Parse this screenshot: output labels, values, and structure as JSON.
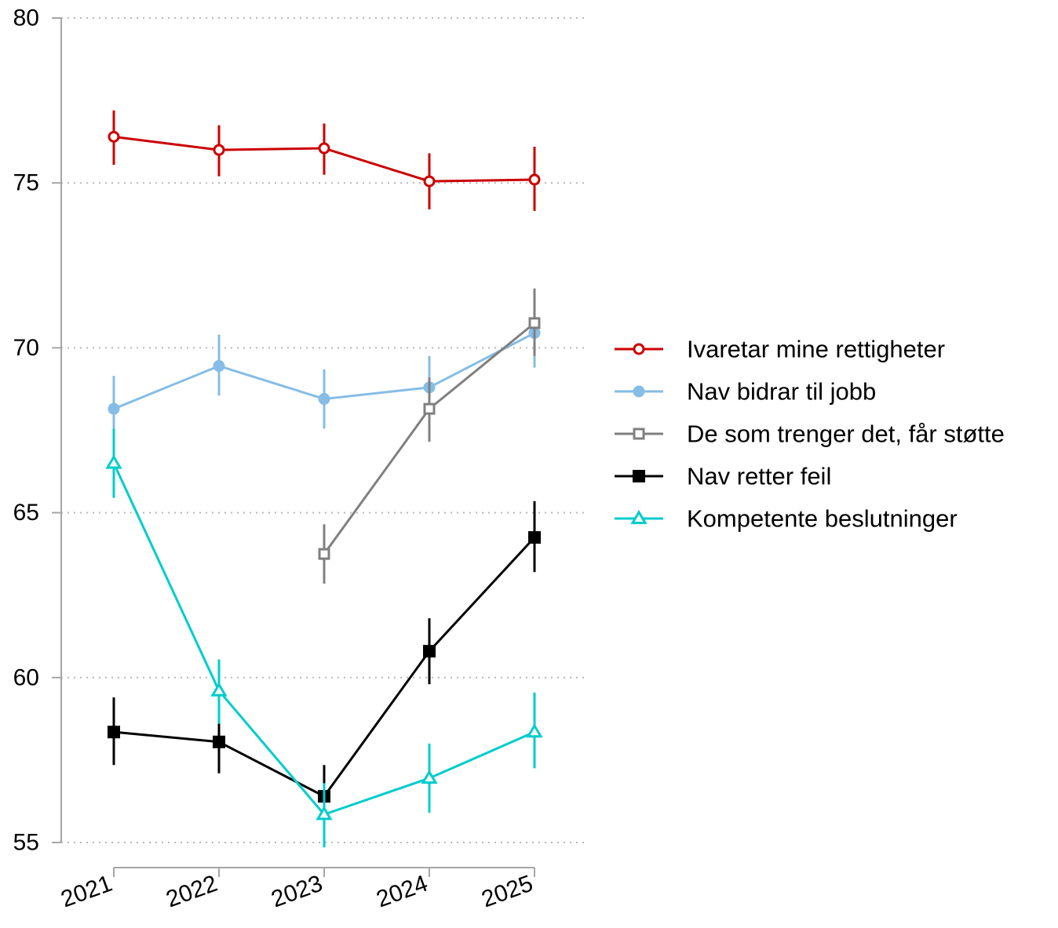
{
  "chart_data": {
    "type": "line",
    "title": "",
    "xlabel": "",
    "ylabel": "",
    "x": [
      "2021",
      "2022",
      "2023",
      "2024",
      "2025"
    ],
    "ylim": [
      55,
      80
    ],
    "yticks": [
      55,
      60,
      65,
      70,
      75,
      80
    ],
    "grid": "horizontal-dotted",
    "legend_position": "right",
    "series": [
      {
        "name": "Ivaretar mine rettigheter",
        "color": "#cc0000",
        "marker": "circle-open",
        "values": [
          76.4,
          76.0,
          76.05,
          75.05,
          75.1
        ],
        "err_low": [
          75.55,
          75.2,
          75.25,
          74.2,
          74.15
        ],
        "err_high": [
          77.2,
          76.75,
          76.8,
          75.9,
          76.1
        ]
      },
      {
        "name": "Nav bidrar til jobb",
        "color": "#85bde6",
        "marker": "circle-filled",
        "values": [
          68.15,
          69.45,
          68.45,
          68.8,
          70.45
        ],
        "err_low": [
          67.15,
          68.55,
          67.55,
          67.85,
          69.4
        ],
        "err_high": [
          69.15,
          70.4,
          69.35,
          69.75,
          71.45
        ]
      },
      {
        "name": "De som trenger det, får støtte",
        "color": "#808080",
        "marker": "square-open",
        "values": [
          null,
          null,
          63.75,
          68.15,
          70.75
        ],
        "err_low": [
          null,
          null,
          62.85,
          67.15,
          69.75
        ],
        "err_high": [
          null,
          null,
          64.65,
          69.1,
          71.8
        ]
      },
      {
        "name": "Nav retter feil",
        "color": "#000000",
        "marker": "square-filled",
        "values": [
          58.35,
          58.05,
          56.4,
          60.8,
          64.25
        ],
        "err_low": [
          57.35,
          57.1,
          55.45,
          59.8,
          63.2
        ],
        "err_high": [
          59.4,
          59.0,
          57.35,
          61.8,
          65.35
        ]
      },
      {
        "name": "Kompetente beslutninger",
        "color": "#00cccc",
        "marker": "triangle-open",
        "values": [
          66.5,
          59.6,
          55.85,
          56.95,
          58.35
        ],
        "err_low": [
          65.45,
          58.6,
          54.85,
          55.9,
          57.25
        ],
        "err_high": [
          67.55,
          60.55,
          56.8,
          58.0,
          59.55
        ]
      }
    ]
  }
}
